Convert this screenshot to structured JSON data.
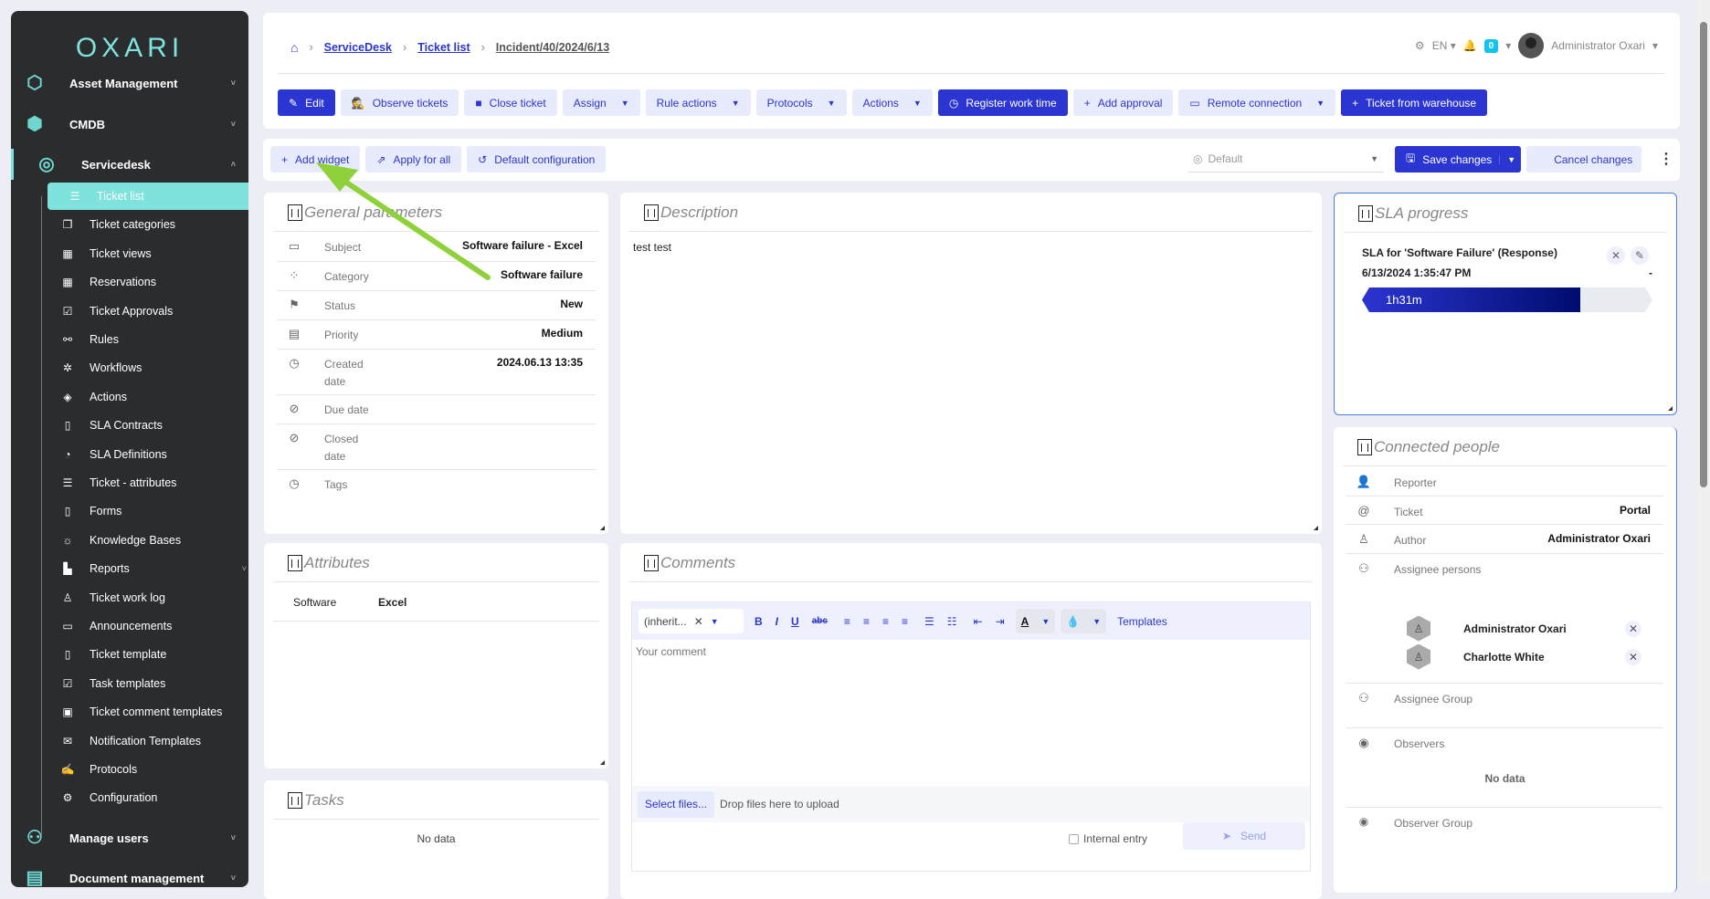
{
  "brand": "OXARI",
  "sidebar": {
    "top": [
      {
        "label": "Asset Management",
        "icon": "hexagons-icon"
      },
      {
        "label": "CMDB",
        "icon": "cmdb-icon"
      },
      {
        "label": "Servicedesk",
        "icon": "headset-icon"
      },
      {
        "label": "Manage users",
        "icon": "users-tree-icon"
      },
      {
        "label": "Document management",
        "icon": "documents-icon"
      }
    ],
    "items": [
      {
        "label": "Ticket list",
        "icon": "list-icon",
        "active": true
      },
      {
        "label": "Ticket categories",
        "icon": "categories-icon"
      },
      {
        "label": "Ticket views",
        "icon": "table-icon"
      },
      {
        "label": "Reservations",
        "icon": "calendar-icon"
      },
      {
        "label": "Ticket Approvals",
        "icon": "checklist-icon"
      },
      {
        "label": "Rules",
        "icon": "rules-icon"
      },
      {
        "label": "Workflows",
        "icon": "workflow-icon"
      },
      {
        "label": "Actions",
        "icon": "target-icon"
      },
      {
        "label": "SLA Contracts",
        "icon": "document-icon"
      },
      {
        "label": "SLA Definitions",
        "icon": "stopwatch-icon"
      },
      {
        "label": "Ticket - attributes",
        "icon": "list-icon"
      },
      {
        "label": "Forms",
        "icon": "form-icon"
      },
      {
        "label": "Knowledge Bases",
        "icon": "bulb-icon"
      },
      {
        "label": "Reports",
        "icon": "chart-icon",
        "expandable": true
      },
      {
        "label": "Ticket work log",
        "icon": "user-clock-icon"
      },
      {
        "label": "Announcements",
        "icon": "scroll-icon"
      },
      {
        "label": "Ticket template",
        "icon": "form-icon"
      },
      {
        "label": "Task templates",
        "icon": "checklist-icon"
      },
      {
        "label": "Ticket comment templates",
        "icon": "comment-template-icon"
      },
      {
        "label": "Notification Templates",
        "icon": "envelope-icon"
      },
      {
        "label": "Protocols",
        "icon": "signature-icon"
      },
      {
        "label": "Configuration",
        "icon": "gears-icon"
      }
    ]
  },
  "breadcrumb": [
    "ServiceDesk",
    "Ticket list",
    "Incident/40/2024/6/13"
  ],
  "user": {
    "language": "EN",
    "notifications": "0",
    "name": "Administrator Oxari"
  },
  "actions": [
    {
      "label": "Edit",
      "icon": "✎",
      "primary": true
    },
    {
      "label": "Observe tickets",
      "icon": "🕵"
    },
    {
      "label": "Close ticket",
      "icon": "■"
    },
    {
      "label": "Assign",
      "dropdown": true
    },
    {
      "label": "Rule actions",
      "dropdown": true
    },
    {
      "label": "Protocols",
      "dropdown": true
    },
    {
      "label": "Actions",
      "dropdown": true
    },
    {
      "label": "Register work time",
      "icon": "◷",
      "primary": true
    },
    {
      "label": "Add approval",
      "icon": "+"
    },
    {
      "label": "Remote connection",
      "icon": "▭",
      "dropdown": true
    },
    {
      "label": "Ticket from warehouse",
      "icon": "+",
      "primary": true
    }
  ],
  "widget_toolbar": {
    "add_widget": "Add widget",
    "apply_all": "Apply for all",
    "default_config": "Default configuration",
    "view_select": "Default",
    "save": "Save changes",
    "cancel": "Cancel changes"
  },
  "general": {
    "title": "General parameters",
    "rows": [
      {
        "label": "Subject",
        "value": "Software failure - Excel",
        "icon": "chat-icon"
      },
      {
        "label": "Category",
        "value": "Software failure",
        "icon": "category-icon"
      },
      {
        "label": "Status",
        "value": "New",
        "icon": "flag-icon"
      },
      {
        "label": "Priority",
        "value": "Medium",
        "icon": "priority-icon"
      },
      {
        "label": "Created date",
        "value": "2024.06.13 13:35",
        "icon": "alarm-icon"
      },
      {
        "label": "Due date",
        "value": "",
        "icon": "alarm-off-icon"
      },
      {
        "label": "Closed date",
        "value": "",
        "icon": "alarm-off-icon"
      },
      {
        "label": "Tags",
        "value": "",
        "icon": "alarm-icon"
      }
    ]
  },
  "description": {
    "title": "Description",
    "text": "test test"
  },
  "attributes": {
    "title": "Attributes",
    "rows": [
      {
        "label": "Software",
        "value": "Excel"
      }
    ]
  },
  "tasks": {
    "title": "Tasks",
    "empty": "No data"
  },
  "comments": {
    "title": "Comments",
    "font_select": "(inherit...",
    "templates": "Templates",
    "placeholder": "Your comment",
    "select_files": "Select files...",
    "drop": "Drop files here to upload",
    "internal": "Internal entry",
    "send": "Send"
  },
  "sla": {
    "title": "SLA progress",
    "name": "SLA for 'Software Failure' (Response)",
    "start": "6/13/2024 1:35:47 PM",
    "end": "-",
    "elapsed": "1h31m",
    "progress_percent": 75
  },
  "people": {
    "title": "Connected people",
    "reporter": "Reporter",
    "ticket_label": "Ticket",
    "ticket_value": "Portal",
    "author_label": "Author",
    "author_value": "Administrator Oxari",
    "assignee_persons": "Assignee persons",
    "assignees": [
      "Administrator Oxari",
      "Charlotte White"
    ],
    "assignee_group": "Assignee Group",
    "observers": "Observers",
    "observers_empty": "No data",
    "observer_group": "Observer Group"
  },
  "colors": {
    "primary": "#2b35d1",
    "accent": "#7fe3dd",
    "sidebar": "#2b2c2e",
    "annotation_arrow": "#8ed13a"
  }
}
